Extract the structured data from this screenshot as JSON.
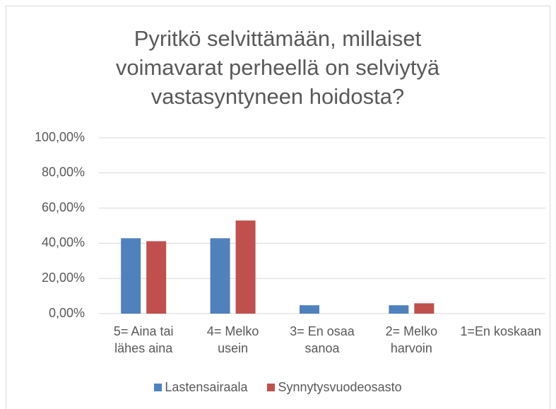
{
  "chart_data": {
    "type": "bar",
    "title": "Pyritkö selvittämään, millaiset voimavarat perheellä on selviytyä vastasyntyneen hoidosta?",
    "categories": [
      "5= Aina tai lähes aina",
      "4= Melko usein",
      "3= En osaa sanoa",
      "2= Melko harvoin",
      "1=En koskaan"
    ],
    "series": [
      {
        "name": "Lastensairaala",
        "color": "#4f81bd",
        "values": [
          42.86,
          42.86,
          4.76,
          4.76,
          0
        ]
      },
      {
        "name": "Synnytysvuodeosasto",
        "color": "#c0504d",
        "values": [
          41.18,
          52.94,
          0,
          5.88,
          0
        ]
      }
    ],
    "ylim": [
      0,
      100
    ],
    "yticks": [
      {
        "value": 0,
        "label": "0,00%"
      },
      {
        "value": 20,
        "label": "20,00%"
      },
      {
        "value": 40,
        "label": "40,00%"
      },
      {
        "value": 60,
        "label": "60,00%"
      },
      {
        "value": 80,
        "label": "80,00%"
      },
      {
        "value": 100,
        "label": "100,00%"
      }
    ],
    "grid": true,
    "legend": "bottom"
  }
}
